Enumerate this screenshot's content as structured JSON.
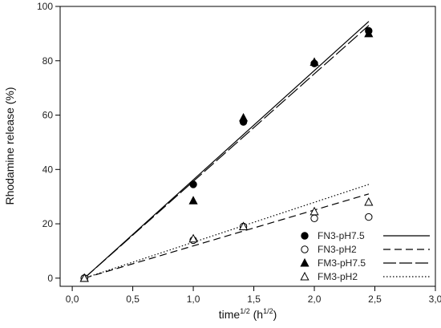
{
  "chart_data": {
    "type": "scatter",
    "title": "",
    "xlabel": {
      "base": "time",
      "base_sup": "1/2",
      "unit_open": " (h",
      "unit_sup": "1/2",
      "unit_close": ")"
    },
    "ylabel": "Rhodamine release (%)",
    "xlim": [
      -0.1,
      3.0
    ],
    "ylim": [
      -3,
      100
    ],
    "x_ticks": [
      0.0,
      0.5,
      1.0,
      1.5,
      2.0,
      2.5,
      3.0
    ],
    "x_tick_labels": [
      "0,0",
      "0,5",
      "1,0",
      "1,5",
      "2,0",
      "2,5",
      "3,0"
    ],
    "y_ticks": [
      0,
      20,
      40,
      60,
      80,
      100
    ],
    "y_tick_labels": [
      "0",
      "20",
      "40",
      "60",
      "80",
      "100"
    ],
    "grid": false,
    "legend_position": "bottom-right",
    "series": [
      {
        "name": "FN3-pH7.5",
        "marker": "filled-circle",
        "line_style": "solid",
        "x": [
          0.1,
          1.0,
          1.414,
          2.0,
          2.449
        ],
        "y": [
          0,
          34.5,
          57.5,
          79,
          91
        ],
        "fit": {
          "x": [
            0.1,
            2.45
          ],
          "y": [
            0,
            94.5
          ]
        }
      },
      {
        "name": "FN3-pH2",
        "marker": "open-circle",
        "line_style": "short-dash",
        "x": [
          0.1,
          1.0,
          1.414,
          2.0,
          2.449
        ],
        "y": [
          0,
          14,
          19,
          22,
          22.5
        ],
        "fit": {
          "x": [
            0.1,
            2.45
          ],
          "y": [
            0,
            31
          ]
        }
      },
      {
        "name": "FM3-pH7.5",
        "marker": "filled-triangle",
        "line_style": "long-dash",
        "x": [
          0.1,
          1.0,
          1.414,
          2.0,
          2.449
        ],
        "y": [
          0,
          28.5,
          59,
          79.5,
          90
        ],
        "fit": {
          "x": [
            0.1,
            2.45
          ],
          "y": [
            0,
            93
          ]
        }
      },
      {
        "name": "FM3-pH2",
        "marker": "open-triangle",
        "line_style": "dotted",
        "x": [
          0.1,
          1.0,
          1.414,
          2.0,
          2.449
        ],
        "y": [
          0,
          14.5,
          19,
          24.5,
          28
        ],
        "fit": {
          "x": [
            0.1,
            2.45
          ],
          "y": [
            0,
            34.5
          ]
        }
      }
    ]
  }
}
